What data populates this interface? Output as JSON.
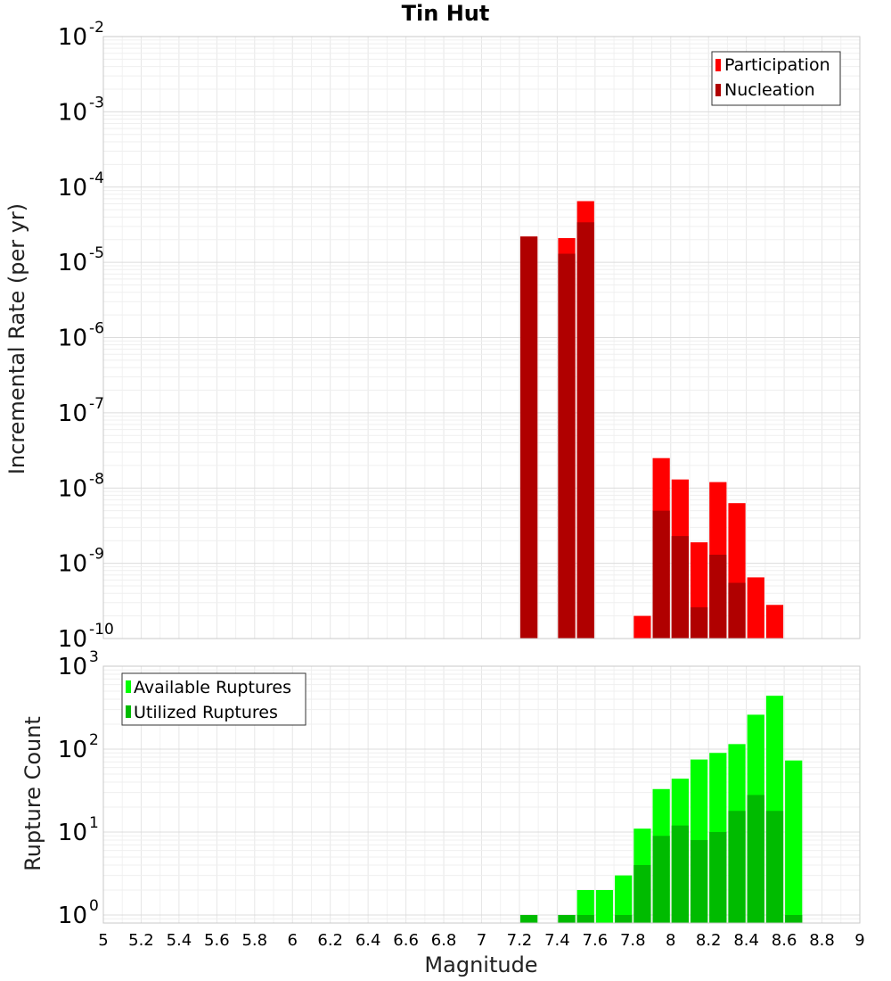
{
  "chart_data": [
    {
      "type": "bar",
      "title": "Tin Hut",
      "ylabel": "Incremental Rate (per yr)",
      "xlabel": "",
      "x_range": [
        5,
        9
      ],
      "y_scale": "log",
      "ylim": [
        1e-10,
        0.01
      ],
      "grid": true,
      "legend_placement": "top-right",
      "series": [
        {
          "name": "Participation",
          "color": "#ff0000",
          "x": [
            7.25,
            7.45,
            7.55,
            7.85,
            7.95,
            8.05,
            8.15,
            8.25,
            8.35,
            8.45,
            8.55
          ],
          "values": [
            2.2e-05,
            2.1e-05,
            6.5e-05,
            2e-10,
            2.5e-08,
            1.3e-08,
            1.9e-09,
            1.2e-08,
            6.3e-09,
            6.5e-10,
            2.8e-10
          ]
        },
        {
          "name": "Nucleation",
          "color": "#b00000",
          "x": [
            7.25,
            7.45,
            7.55,
            7.95,
            8.05,
            8.15,
            8.25,
            8.35
          ],
          "values": [
            2.2e-05,
            1.3e-05,
            3.4e-05,
            5e-09,
            2.3e-09,
            2.6e-10,
            1.3e-09,
            5.5e-10
          ]
        }
      ]
    },
    {
      "type": "bar",
      "title": "",
      "ylabel": "Rupture Count",
      "xlabel": "Magnitude",
      "x_range": [
        5,
        9
      ],
      "x_ticks": [
        "5",
        "5.2",
        "5.4",
        "5.6",
        "5.8",
        "6",
        "6.2",
        "6.4",
        "6.6",
        "6.8",
        "7",
        "7.2",
        "7.4",
        "7.6",
        "7.8",
        "8",
        "8.2",
        "8.4",
        "8.6",
        "8.8",
        "9"
      ],
      "y_scale": "log",
      "ylim": [
        0.8,
        1000
      ],
      "grid": true,
      "legend_placement": "top-left",
      "series": [
        {
          "name": "Available Ruptures",
          "color": "#00ff00",
          "x": [
            7.25,
            7.45,
            7.55,
            7.65,
            7.75,
            7.85,
            7.95,
            8.05,
            8.15,
            8.25,
            8.35,
            8.45,
            8.55,
            8.65
          ],
          "values": [
            1,
            1,
            2,
            2,
            3,
            11,
            33,
            44,
            75,
            90,
            115,
            260,
            440,
            73
          ]
        },
        {
          "name": "Utilized Ruptures",
          "color": "#00bb00",
          "x": [
            7.25,
            7.45,
            7.55,
            7.75,
            7.85,
            7.95,
            8.05,
            8.15,
            8.25,
            8.35,
            8.45,
            8.55,
            8.65
          ],
          "values": [
            1,
            1,
            1,
            1,
            4,
            9,
            12,
            8,
            10,
            18,
            28,
            18,
            1
          ]
        }
      ]
    }
  ]
}
